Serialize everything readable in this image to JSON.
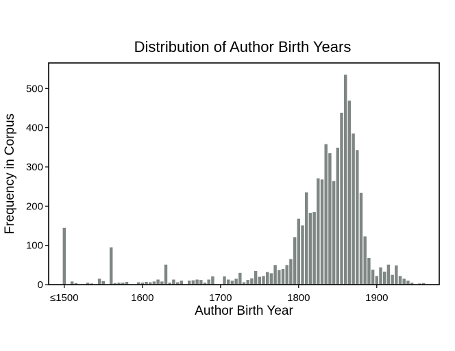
{
  "chart_data": {
    "type": "bar",
    "title": "Distribution of Author Birth Years",
    "xlabel": "Author Birth Year",
    "ylabel": "Frequency in Corpus",
    "xlim": [
      1480,
      1980
    ],
    "ylim": [
      0,
      565
    ],
    "bin_width": 5,
    "x_ticks": [
      1500,
      1600,
      1700,
      1800,
      1900
    ],
    "x_tick_labels": [
      "≤1500",
      "1600",
      "1700",
      "1800",
      "1900"
    ],
    "y_ticks": [
      0,
      100,
      200,
      300,
      400,
      500
    ],
    "bar_color": "#7f8784",
    "grid": false,
    "legend": "none",
    "x": [
      1500,
      1505,
      1510,
      1515,
      1520,
      1525,
      1530,
      1535,
      1540,
      1545,
      1550,
      1555,
      1560,
      1565,
      1570,
      1575,
      1580,
      1585,
      1590,
      1595,
      1600,
      1605,
      1610,
      1615,
      1620,
      1625,
      1630,
      1635,
      1640,
      1645,
      1650,
      1655,
      1660,
      1665,
      1670,
      1675,
      1680,
      1685,
      1690,
      1695,
      1700,
      1705,
      1710,
      1715,
      1720,
      1725,
      1730,
      1735,
      1740,
      1745,
      1750,
      1755,
      1760,
      1765,
      1770,
      1775,
      1780,
      1785,
      1790,
      1795,
      1800,
      1805,
      1810,
      1815,
      1820,
      1825,
      1830,
      1835,
      1840,
      1845,
      1850,
      1855,
      1860,
      1865,
      1870,
      1875,
      1880,
      1885,
      1890,
      1895,
      1900,
      1905,
      1910,
      1915,
      1920,
      1925,
      1930,
      1935,
      1940,
      1945,
      1950,
      1955,
      1960,
      1965
    ],
    "values": [
      145,
      0,
      8,
      4,
      0,
      0,
      5,
      3,
      0,
      15,
      9,
      0,
      95,
      4,
      5,
      5,
      7,
      0,
      0,
      6,
      5,
      7,
      6,
      8,
      13,
      8,
      51,
      5,
      13,
      6,
      10,
      0,
      10,
      11,
      13,
      12,
      5,
      13,
      21,
      0,
      0,
      21,
      13,
      10,
      15,
      30,
      6,
      12,
      16,
      35,
      20,
      22,
      32,
      29,
      50,
      37,
      40,
      50,
      65,
      121,
      168,
      151,
      235,
      183,
      185,
      271,
      268,
      358,
      335,
      264,
      349,
      438,
      535,
      469,
      385,
      343,
      234,
      123,
      68,
      38,
      22,
      44,
      33,
      51,
      25,
      49,
      22,
      15,
      10,
      5,
      0,
      3,
      4,
      0
    ]
  }
}
